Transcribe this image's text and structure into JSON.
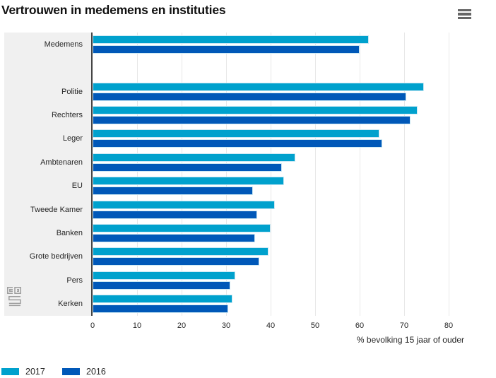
{
  "title": "Vertrouwen in medemens en instituties",
  "menu": {
    "icon": "hamburger-icon"
  },
  "colors": {
    "series_2017": "#00a1cd",
    "series_2016": "#0058b8",
    "bar_border": "#cde9f4",
    "panel_bg": "#f0f0f0",
    "gridline": "#e8e8e8",
    "axis_line": "#454545",
    "text": "#262626",
    "logo_gray": "#9d9d9d"
  },
  "chart_data": {
    "type": "bar",
    "orientation": "horizontal",
    "title": "Vertrouwen in medemens en instituties",
    "xlabel": "% bevolking 15 jaar of ouder",
    "categories": [
      "Medemens",
      "Politie",
      "Rechters",
      "Leger",
      "Ambtenaren",
      "EU",
      "Tweede Kamer",
      "Banken",
      "Grote bedrijven",
      "Pers",
      "Kerken"
    ],
    "category_slots": [
      0,
      2,
      3,
      4,
      5,
      6,
      7,
      8,
      9,
      10,
      11
    ],
    "total_slots": 12,
    "series": [
      {
        "name": "2017",
        "color": "#00a1cd",
        "values": [
          62,
          74.5,
          73,
          64.5,
          45.5,
          43,
          41,
          40,
          39.5,
          32,
          31.5
        ]
      },
      {
        "name": "2016",
        "color": "#0058b8",
        "values": [
          60,
          70.5,
          71.5,
          65,
          42.5,
          36,
          37,
          36.5,
          37.5,
          31,
          30.5
        ]
      }
    ],
    "x_ticks": [
      0,
      10,
      20,
      30,
      40,
      50,
      60,
      70,
      80
    ],
    "xlim": [
      0,
      84
    ],
    "grid": true,
    "legend_position": "bottom-left"
  }
}
